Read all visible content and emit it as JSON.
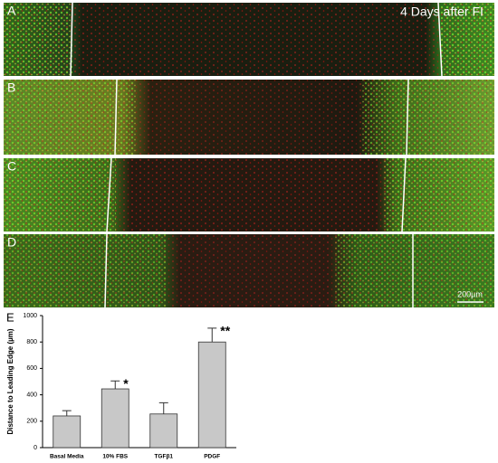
{
  "panels": {
    "labels": [
      "A",
      "B",
      "C",
      "D"
    ],
    "caption": "4 Days after FI",
    "scale_bar": "200µm"
  },
  "chart_data": {
    "type": "bar",
    "panel_label": "E",
    "y_label": "Distance to Leading Edge (µm)",
    "categories": [
      "Basal Media",
      "10% FBS",
      "TGFβ1",
      "PDGF"
    ],
    "values": [
      240,
      445,
      255,
      800
    ],
    "errors": [
      40,
      60,
      85,
      105
    ],
    "significance": [
      null,
      "*",
      null,
      "**"
    ],
    "color": "#c8c8c8",
    "ylim": [
      0,
      1000
    ],
    "yticks": [
      0,
      200,
      400,
      600,
      800,
      1000
    ],
    "grid": false
  }
}
